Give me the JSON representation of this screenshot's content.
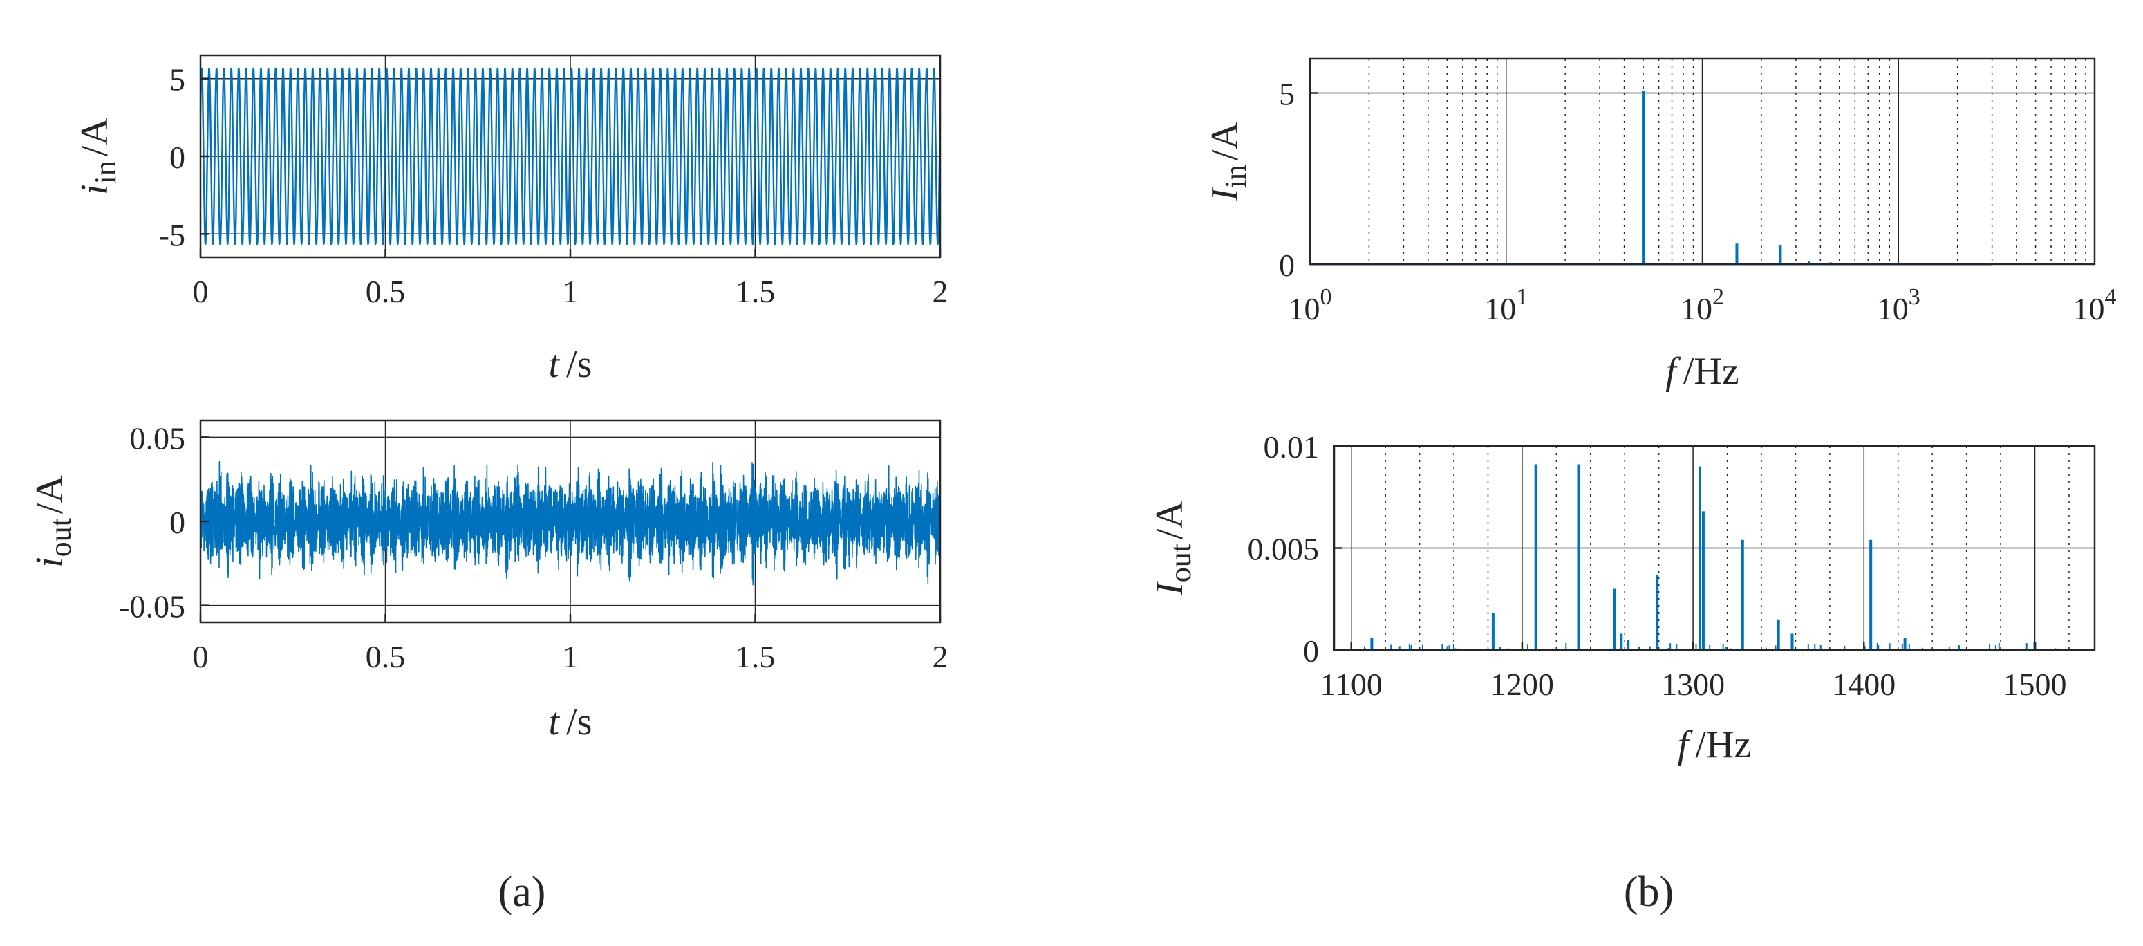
{
  "panel_labels": [
    "(a)",
    "(b)"
  ],
  "colors": {
    "trace": "#0072BD",
    "axes": "#262626",
    "background": "#ffffff"
  },
  "chart_data": [
    {
      "id": "iin_time",
      "panel": "(a)",
      "type": "line",
      "ylabel": {
        "main": "i",
        "sub": "in",
        "unit": "/A"
      },
      "xlabel": {
        "main": "t",
        "unit": "/s"
      },
      "xlim": [
        0,
        2
      ],
      "ylim": [
        -6.5,
        6.5
      ],
      "xticks": [
        0,
        0.5,
        1,
        1.5,
        2
      ],
      "xtick_labels": [
        "0",
        "0.5",
        "1",
        "1.5",
        "2"
      ],
      "yticks": [
        -5,
        0,
        5
      ],
      "ytick_labels": [
        "-5",
        "0",
        "5"
      ],
      "grid": "major-solid",
      "signal": {
        "kind": "sinusoid",
        "amplitude": 5.7,
        "frequency_hz": 50
      }
    },
    {
      "id": "iout_time",
      "panel": "(a)",
      "type": "line",
      "ylabel": {
        "main": "i",
        "sub": "out",
        "unit": "/A"
      },
      "xlabel": {
        "main": "t",
        "unit": "/s"
      },
      "xlim": [
        0,
        2
      ],
      "ylim": [
        -0.06,
        0.06
      ],
      "xticks": [
        0,
        0.5,
        1,
        1.5,
        2
      ],
      "xtick_labels": [
        "0",
        "0.5",
        "1",
        "1.5",
        "2"
      ],
      "yticks": [
        -0.05,
        0,
        0.05
      ],
      "ytick_labels": [
        "-0.05",
        "0",
        "0.05"
      ],
      "grid": "major-solid",
      "signal": {
        "kind": "high-frequency noise with beats",
        "peak": 0.045
      }
    },
    {
      "id": "Iin_spectrum",
      "panel": "(b)",
      "type": "line",
      "xscale": "log",
      "ylabel": {
        "main": "I",
        "sub": "in",
        "unit": "/A"
      },
      "xlabel": {
        "main": "f",
        "unit": "/Hz"
      },
      "xlim": [
        1,
        10000
      ],
      "ylim": [
        0,
        6
      ],
      "xtick_labels": [
        {
          "base": "10",
          "exp": "0"
        },
        {
          "base": "10",
          "exp": "1"
        },
        {
          "base": "10",
          "exp": "2"
        },
        {
          "base": "10",
          "exp": "3"
        },
        {
          "base": "10",
          "exp": "4"
        }
      ],
      "yticks": [
        0,
        5
      ],
      "ytick_labels": [
        "0",
        "5"
      ],
      "grid": "major-solid, minor-dotted",
      "peaks": [
        {
          "f": 50,
          "a": 5.05
        },
        {
          "f": 150,
          "a": 0.6
        },
        {
          "f": 250,
          "a": 0.55
        },
        {
          "f": 350,
          "a": 0.08
        },
        {
          "f": 450,
          "a": 0.05
        },
        {
          "f": 550,
          "a": 0.04
        },
        {
          "f": 650,
          "a": 0.03
        }
      ]
    },
    {
      "id": "Iout_spectrum",
      "panel": "(b)",
      "type": "line",
      "ylabel": {
        "main": "I",
        "sub": "out",
        "unit": "/A"
      },
      "xlabel": {
        "main": "f",
        "unit": "/Hz"
      },
      "xlim": [
        1090,
        1535
      ],
      "ylim": [
        0,
        0.01
      ],
      "xticks": [
        1100,
        1200,
        1300,
        1400,
        1500
      ],
      "xtick_labels": [
        "1100",
        "1200",
        "1300",
        "1400",
        "1500"
      ],
      "yticks": [
        0,
        0.005,
        0.01
      ],
      "ytick_labels": [
        "0",
        "0.005",
        "0.01"
      ],
      "grid": "major-solid, minor-dotted",
      "peaks": [
        {
          "f": 1112,
          "a": 0.0006
        },
        {
          "f": 1183,
          "a": 0.0018
        },
        {
          "f": 1208,
          "a": 0.0091
        },
        {
          "f": 1233,
          "a": 0.0091
        },
        {
          "f": 1254,
          "a": 0.003
        },
        {
          "f": 1258,
          "a": 0.0008
        },
        {
          "f": 1262,
          "a": 0.0005
        },
        {
          "f": 1279,
          "a": 0.0037
        },
        {
          "f": 1304,
          "a": 0.009
        },
        {
          "f": 1306,
          "a": 0.0068
        },
        {
          "f": 1329,
          "a": 0.0054
        },
        {
          "f": 1350,
          "a": 0.0015
        },
        {
          "f": 1358,
          "a": 0.0008
        },
        {
          "f": 1404,
          "a": 0.0054
        },
        {
          "f": 1424,
          "a": 0.0006
        },
        {
          "f": 1500,
          "a": 0.0004
        }
      ]
    }
  ]
}
